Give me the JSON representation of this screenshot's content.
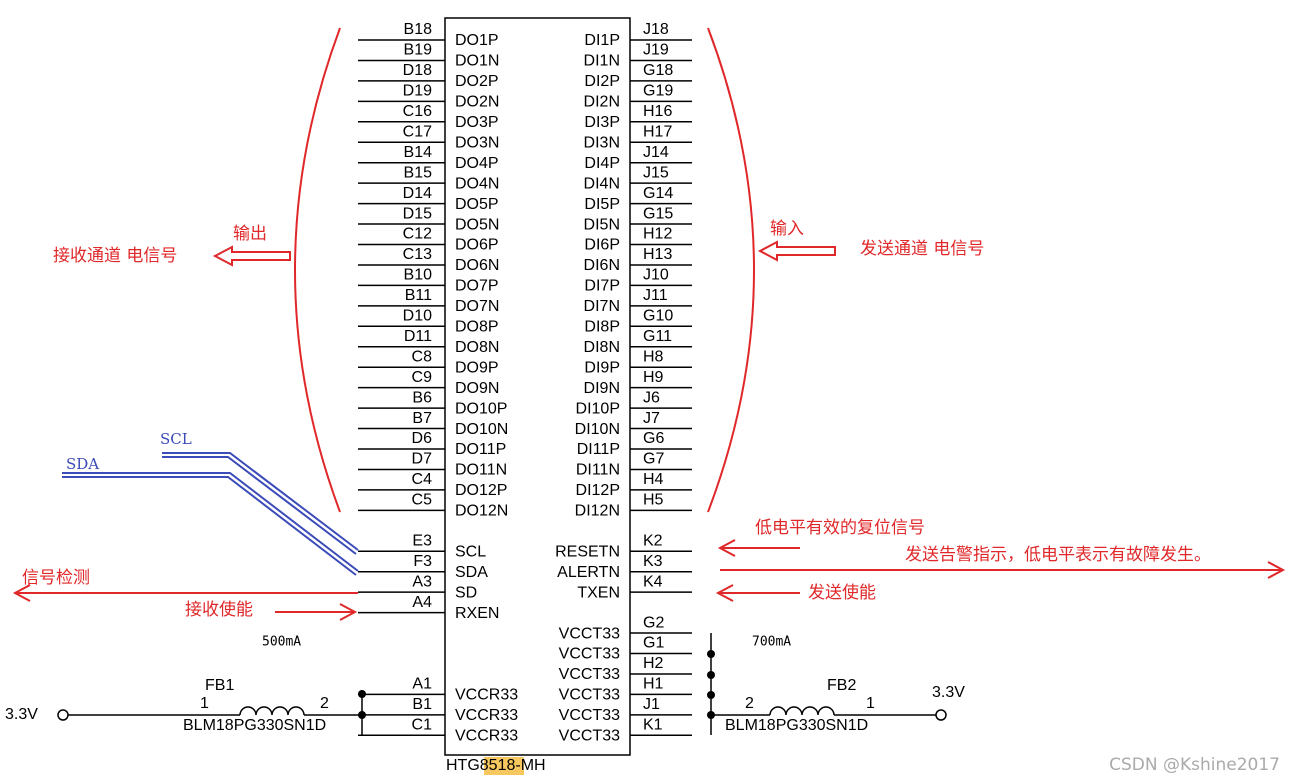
{
  "chip": {
    "part_prefix": "HTG",
    "part_highlight": "8518",
    "part_suffix": "-MH",
    "left_signal_pins": [
      [
        "B18",
        "DO1P"
      ],
      [
        "B19",
        "DO1N"
      ],
      [
        "D18",
        "DO2P"
      ],
      [
        "D19",
        "DO2N"
      ],
      [
        "C16",
        "DO3P"
      ],
      [
        "C17",
        "DO3N"
      ],
      [
        "B14",
        "DO4P"
      ],
      [
        "B15",
        "DO4N"
      ],
      [
        "D14",
        "DO5P"
      ],
      [
        "D15",
        "DO5N"
      ],
      [
        "C12",
        "DO6P"
      ],
      [
        "C13",
        "DO6N"
      ],
      [
        "B10",
        "DO7P"
      ],
      [
        "B11",
        "DO7N"
      ],
      [
        "D10",
        "DO8P"
      ],
      [
        "D11",
        "DO8N"
      ],
      [
        "C8",
        "DO9P"
      ],
      [
        "C9",
        "DO9N"
      ],
      [
        "B6",
        "DO10P"
      ],
      [
        "B7",
        "DO10N"
      ],
      [
        "D6",
        "DO11P"
      ],
      [
        "D7",
        "DO11N"
      ],
      [
        "C4",
        "DO12P"
      ],
      [
        "C5",
        "DO12N"
      ]
    ],
    "left_control_pins": [
      [
        "E3",
        "SCL"
      ],
      [
        "F3",
        "SDA"
      ],
      [
        "A3",
        "SD"
      ],
      [
        "A4",
        "RXEN"
      ]
    ],
    "left_power_pins": [
      [
        "A1",
        "VCCR33"
      ],
      [
        "B1",
        "VCCR33"
      ],
      [
        "C1",
        "VCCR33"
      ]
    ],
    "right_signal_pins": [
      [
        "J18",
        "DI1P"
      ],
      [
        "J19",
        "DI1N"
      ],
      [
        "G18",
        "DI2P"
      ],
      [
        "G19",
        "DI2N"
      ],
      [
        "H16",
        "DI3P"
      ],
      [
        "H17",
        "DI3N"
      ],
      [
        "J14",
        "DI4P"
      ],
      [
        "J15",
        "DI4N"
      ],
      [
        "G14",
        "DI5P"
      ],
      [
        "G15",
        "DI5N"
      ],
      [
        "H12",
        "DI6P"
      ],
      [
        "H13",
        "DI6N"
      ],
      [
        "J10",
        "DI7P"
      ],
      [
        "J11",
        "DI7N"
      ],
      [
        "G10",
        "DI8P"
      ],
      [
        "G11",
        "DI8N"
      ],
      [
        "H8",
        "DI9P"
      ],
      [
        "H9",
        "DI9N"
      ],
      [
        "J6",
        "DI10P"
      ],
      [
        "J7",
        "DI10N"
      ],
      [
        "G6",
        "DI11P"
      ],
      [
        "G7",
        "DI11N"
      ],
      [
        "H4",
        "DI12P"
      ],
      [
        "H5",
        "DI12N"
      ]
    ],
    "right_control_pins": [
      [
        "K2",
        "RESETN"
      ],
      [
        "K3",
        "ALERTN"
      ],
      [
        "K4",
        "TXEN"
      ]
    ],
    "right_power_pins": [
      [
        "G2",
        "VCCT33"
      ],
      [
        "G1",
        "VCCT33"
      ],
      [
        "H2",
        "VCCT33"
      ],
      [
        "H1",
        "VCCT33"
      ],
      [
        "J1",
        "VCCT33"
      ],
      [
        "K1",
        "VCCT33"
      ]
    ]
  },
  "annotations": {
    "output": "输出",
    "rx_channel": "接收通道 电信号",
    "input": "输入",
    "tx_channel": "发送通道 电信号",
    "scl": "SCL",
    "sda": "SDA",
    "signal_detect": "信号检测",
    "rx_enable": "接收使能",
    "reset": "低电平有效的复位信号",
    "alert": "发送告警指示，低电平表示有故障发生。",
    "tx_enable": "发送使能",
    "current_left": "500mA",
    "current_right": "700mA"
  },
  "fb1": {
    "name": "FB1",
    "pin1": "1",
    "pin2": "2",
    "part": "BLM18PG330SN1D",
    "supply": "3.3V"
  },
  "fb2": {
    "name": "FB2",
    "pin1": "1",
    "pin2": "2",
    "part": "BLM18PG330SN1D",
    "supply": "3.3V"
  },
  "watermark": "CSDN @Kshine2017"
}
